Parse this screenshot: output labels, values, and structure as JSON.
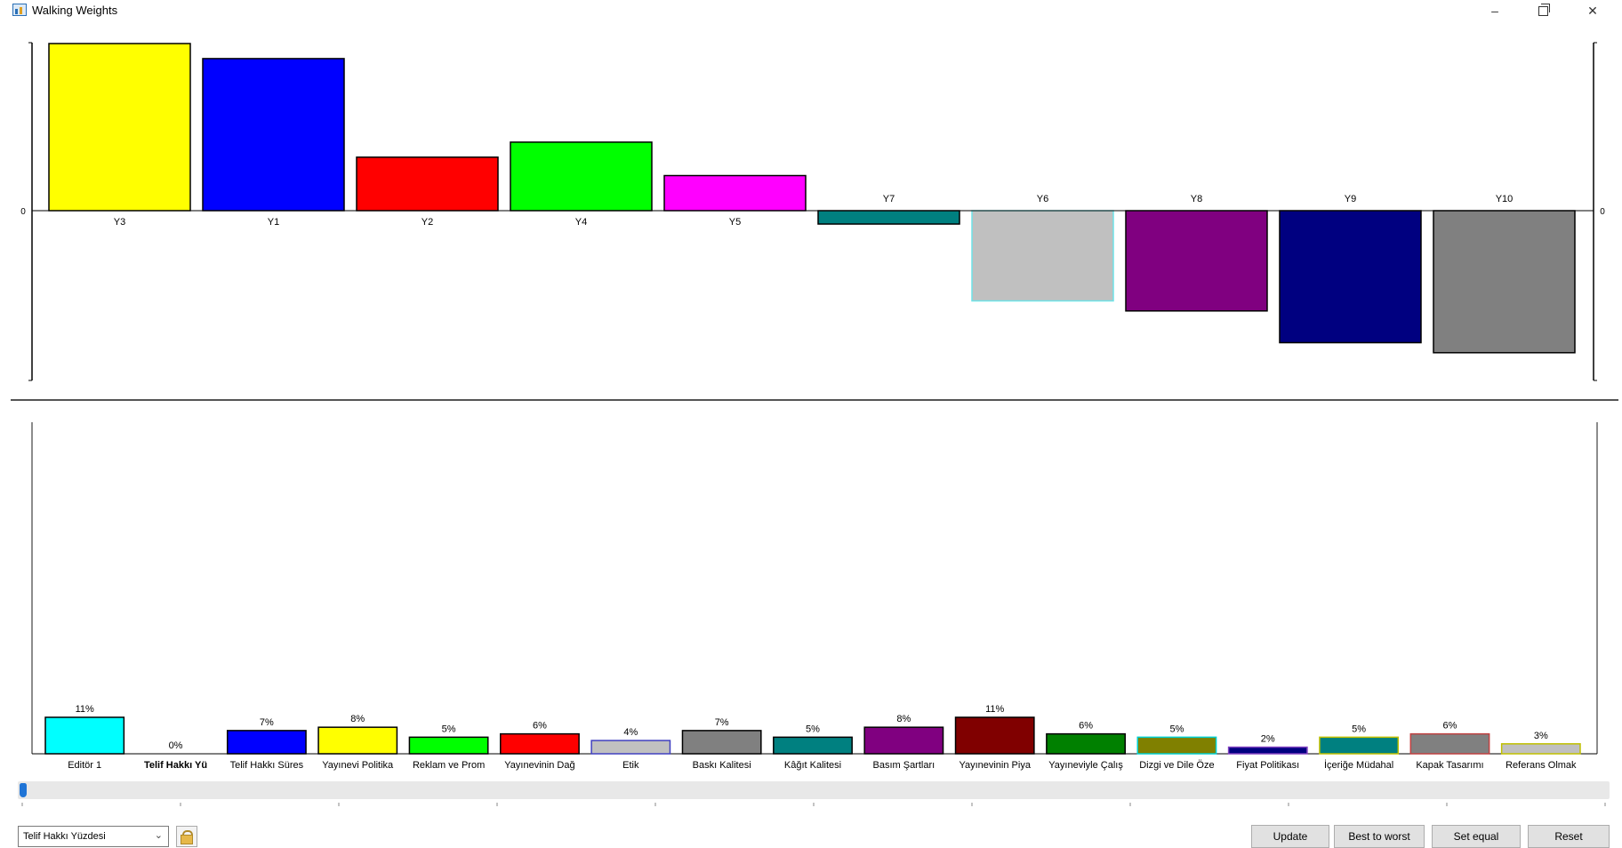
{
  "window": {
    "title": "Walking Weights"
  },
  "top_chart_data": {
    "type": "bar",
    "zero_label": "0",
    "categories": [
      "Y3",
      "Y1",
      "Y2",
      "Y4",
      "Y5",
      "Y7",
      "Y6",
      "Y8",
      "Y9",
      "Y10"
    ],
    "values": [
      1.0,
      0.91,
      0.32,
      0.41,
      0.21,
      -0.08,
      -0.54,
      -0.6,
      -0.79,
      -0.85
    ],
    "ylim": [
      -1.02,
      1.0
    ],
    "colors": [
      "#ffff00",
      "#0000ff",
      "#ff0000",
      "#00ff00",
      "#ff00ff",
      "#008080",
      "#c0c0c0",
      "#800080",
      "#000080",
      "#808080"
    ],
    "borders": [
      "#000000",
      "#000000",
      "#000000",
      "#000000",
      "#000000",
      "#000000",
      "#6fe3e8",
      "#000000",
      "#000000",
      "#000000"
    ]
  },
  "chart_data": {
    "type": "bar",
    "categories": [
      "Editör 1",
      "Telif Hakkı Yü",
      "Telif Hakkı Süres",
      "Yayınevi Politika",
      "Reklam ve Prom",
      "Yayınevinin Dağ",
      "Etik",
      "Baskı Kalitesi",
      "Kâğıt Kalitesi",
      "Basım Şartları",
      "Yayınevinin Piya",
      "Yayıneviyle Çalış",
      "Dizgi ve Dile Öze",
      "Fiyat Politikası",
      "İçeriğe Müdahal",
      "Kapak Tasarımı",
      "Referans Olmak"
    ],
    "values": [
      11,
      0,
      7,
      8,
      5,
      6,
      4,
      7,
      5,
      8,
      11,
      6,
      5,
      2,
      5,
      6,
      3
    ],
    "value_labels": [
      "11%",
      "0%",
      "7%",
      "8%",
      "5%",
      "6%",
      "4%",
      "7%",
      "5%",
      "8%",
      "11%",
      "6%",
      "5%",
      "2%",
      "5%",
      "6%",
      "3%"
    ],
    "selected_category": "Telif Hakkı Yü",
    "ylim": [
      0,
      100
    ],
    "colors": [
      "#00ffff",
      "#ffffff",
      "#0000ff",
      "#ffff00",
      "#00ff00",
      "#ff0000",
      "#c0c0c0",
      "#808080",
      "#008080",
      "#800080",
      "#800000",
      "#008000",
      "#808000",
      "#000080",
      "#008080",
      "#808080",
      "#c0c0c0"
    ],
    "borders": [
      "#000000",
      "#000000",
      "#000000",
      "#000000",
      "#000000",
      "#000000",
      "#4040c0",
      "#000000",
      "#000000",
      "#000000",
      "#000000",
      "#000000",
      "#00cfcf",
      "#8040c0",
      "#c0c000",
      "#c04040",
      "#c0c000"
    ]
  },
  "controls": {
    "criterion_select": "Telif Hakkı Yüzdesi",
    "lock_icon": "lock-icon",
    "buttons": {
      "update": "Update",
      "best_to_worst": "Best to worst",
      "set_equal": "Set equal",
      "reset": "Reset"
    },
    "slider_value": 0
  }
}
